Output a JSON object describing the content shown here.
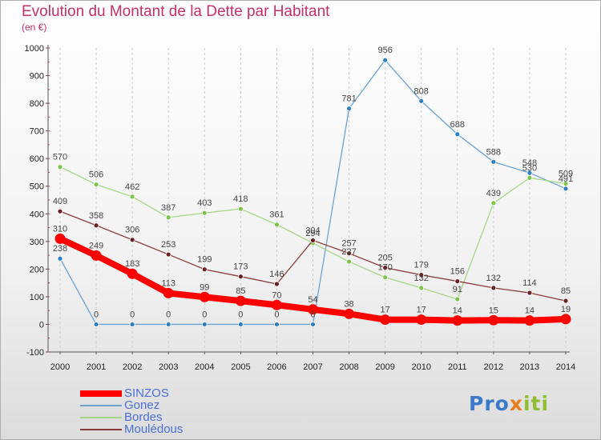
{
  "header": {
    "title": "Evolution du Montant de la Dette par Habitant",
    "subtitle": "(en €)"
  },
  "logo": {
    "part1": "Pro",
    "part2": "x",
    "part3": "iti"
  },
  "colors": {
    "title": "#c2306a",
    "legend_text": "#4a6fd8",
    "grid": "#cccccc",
    "axis": "#555555"
  },
  "chart_data": {
    "type": "line",
    "title": "Evolution du Montant de la Dette par Habitant",
    "subtitle": "(en €)",
    "xlabel": "",
    "ylabel": "",
    "x": [
      "2000",
      "2001",
      "2002",
      "2003",
      "2004",
      "2005",
      "2006",
      "2007",
      "2008",
      "2009",
      "2010",
      "2011",
      "2012",
      "2013",
      "2014"
    ],
    "y_ticks": [
      "-100",
      "0",
      "100",
      "200",
      "300",
      "400",
      "500",
      "600",
      "700",
      "800",
      "900",
      "1000"
    ],
    "ylim": [
      -100,
      1000
    ],
    "grid": "vertical dashed",
    "legend_position": "bottom-left",
    "series": [
      {
        "name": "SINZOS",
        "color": "#ff0000",
        "dot_color": "#ff0000",
        "values": [
          310,
          249,
          183,
          113,
          99,
          85,
          70,
          54,
          38,
          17,
          17,
          14,
          15,
          14,
          19
        ],
        "labels": [
          "310",
          "249",
          "183",
          "113",
          "99",
          "85",
          "70",
          "54",
          "38",
          "17",
          "17",
          "14",
          "15",
          "14",
          "19"
        ]
      },
      {
        "name": "Gonez",
        "color": "#6aa3d5",
        "dot_color": "#2f7fc0",
        "values": [
          238,
          0,
          0,
          0,
          0,
          0,
          0,
          0,
          781,
          956,
          808,
          688,
          588,
          548,
          491
        ],
        "labels": [
          "238",
          "0",
          "0",
          "0",
          "0",
          "0",
          "0",
          "0",
          "781",
          "956",
          "808",
          "688",
          "588",
          "548",
          "491"
        ]
      },
      {
        "name": "Bordes",
        "color": "#a6d785",
        "dot_color": "#7cc54a",
        "values": [
          570,
          506,
          462,
          387,
          403,
          418,
          361,
          294,
          227,
          170,
          132,
          91,
          439,
          530,
          509
        ],
        "labels": [
          "570",
          "506",
          "462",
          "387",
          "403",
          "418",
          "361",
          "294",
          "227",
          "170",
          "132",
          "91",
          "439",
          "530",
          "509"
        ]
      },
      {
        "name": "Mouledous",
        "legend": "Moulédous",
        "color": "#8c3b3b",
        "dot_color": "#6b1f1f",
        "values": [
          409,
          358,
          306,
          253,
          199,
          173,
          146,
          304,
          257,
          205,
          179,
          156,
          132,
          114,
          85
        ],
        "labels": [
          "409",
          "358",
          "306",
          "253",
          "199",
          "173",
          "146",
          "304",
          "257",
          "205",
          "179",
          "156",
          "132",
          "114",
          "85"
        ]
      }
    ]
  },
  "legend": [
    {
      "label": "SINZOS"
    },
    {
      "label": "Gonez"
    },
    {
      "label": "Bordes"
    },
    {
      "label": "Moulédous"
    }
  ]
}
